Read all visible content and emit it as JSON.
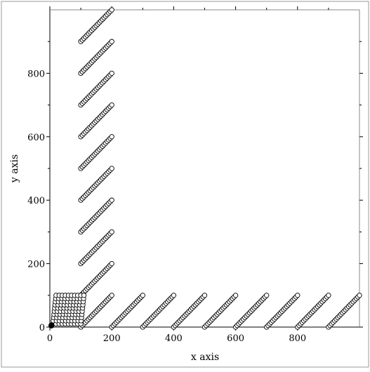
{
  "chart_data": {
    "type": "scatter",
    "title": "",
    "xlabel": "x axis",
    "ylabel": "y axis",
    "xlim": [
      0,
      1000
    ],
    "ylim": [
      0,
      1000
    ],
    "x_ticks": [
      0,
      200,
      400,
      600,
      800
    ],
    "y_ticks": [
      0,
      200,
      400,
      600,
      800
    ],
    "x_tick_labels": [
      "0",
      "200",
      "400",
      "600",
      "800"
    ],
    "y_tick_labels": [
      "0",
      "200",
      "400",
      "600",
      "800"
    ],
    "grid": false,
    "legend": "none",
    "marker": "open-circle",
    "dense_cluster": {
      "description_shape": "parallelogram grid of open circles near origin",
      "corners": [
        [
          10,
          10
        ],
        [
          100,
          10
        ],
        [
          110,
          100
        ],
        [
          20,
          100
        ]
      ],
      "rows": 10,
      "cols": 10
    },
    "origin_point": {
      "x": 5,
      "y": 5,
      "filled": true
    },
    "diagonal_series_from_left": [
      {
        "x0": 100,
        "y0": 100,
        "n": 21
      },
      {
        "x0": 100,
        "y0": 200,
        "n": 21
      },
      {
        "x0": 100,
        "y0": 300,
        "n": 21
      },
      {
        "x0": 100,
        "y0": 400,
        "n": 21
      },
      {
        "x0": 100,
        "y0": 500,
        "n": 21
      },
      {
        "x0": 100,
        "y0": 600,
        "n": 21
      },
      {
        "x0": 100,
        "y0": 700,
        "n": 21
      },
      {
        "x0": 100,
        "y0": 800,
        "n": 21
      },
      {
        "x0": 100,
        "y0": 900,
        "n": 21
      }
    ],
    "diagonal_series_from_bottom": [
      {
        "x0": 100,
        "y0": 0,
        "n": 21
      },
      {
        "x0": 200,
        "y0": 0,
        "n": 21
      },
      {
        "x0": 300,
        "y0": 0,
        "n": 21
      },
      {
        "x0": 400,
        "y0": 0,
        "n": 21
      },
      {
        "x0": 500,
        "y0": 0,
        "n": 21
      },
      {
        "x0": 600,
        "y0": 0,
        "n": 21
      },
      {
        "x0": 700,
        "y0": 0,
        "n": 21
      },
      {
        "x0": 800,
        "y0": 0,
        "n": 21
      },
      {
        "x0": 900,
        "y0": 0,
        "n": 21
      }
    ],
    "point_step": 5
  }
}
